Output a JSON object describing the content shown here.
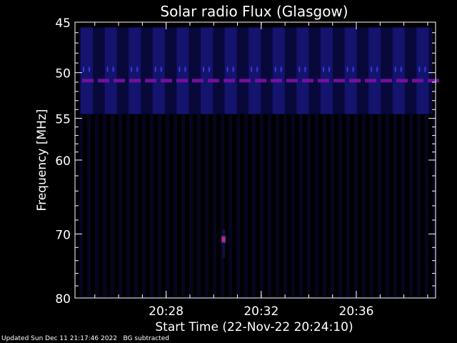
{
  "chart_data": {
    "type": "heatmap",
    "title": "Solar radio Flux (Glasgow)",
    "xlabel": "Start Time (22-Nov-22 20:24:10)",
    "ylabel": "Frequency [MHz]",
    "x_ticks": [
      "20:28",
      "20:32",
      "20:36"
    ],
    "y_ticks": [
      45,
      50,
      55,
      60,
      70,
      80
    ],
    "ylim": [
      45,
      80
    ],
    "xlim": [
      "20:24:10",
      "20:39:20"
    ],
    "y_scale": "log",
    "colors": {
      "background": "#000000",
      "axes": "#ffffff",
      "noise_band": "#08083a",
      "noise_band_bright": "#14146e",
      "interference_line": "#7010a0",
      "burst_core": "#ff2040",
      "burst_halo": "#3030c0"
    },
    "features": {
      "noise_band_mhz": [
        45.5,
        54.5
      ],
      "interference_line_mhz": 50.8,
      "burst": {
        "time": "20:30:25",
        "freq_mhz": 70.8
      }
    }
  },
  "footer": {
    "updated": "Updated Sun Dec 11 21:17:46 2022",
    "note": "BG subtracted"
  }
}
